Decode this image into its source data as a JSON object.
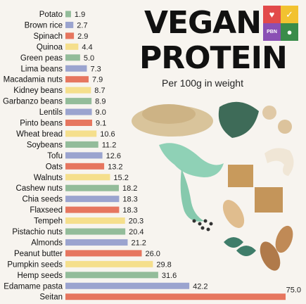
{
  "header": {
    "title_line1": "VEGAN",
    "title_line2": "PROTEIN",
    "subtitle": "Per 100g in weight",
    "logo_text": "PBN"
  },
  "colors": {
    "green": "#93bc9a",
    "blue": "#9ba4cf",
    "red": "#e6765f",
    "yellow": "#f5df8c"
  },
  "chart_data": {
    "type": "bar",
    "orientation": "horizontal",
    "title": "VEGAN PROTEIN",
    "subtitle": "Per 100g in weight",
    "xlim": [
      0,
      75
    ],
    "grid": false,
    "categories": [
      "Potato",
      "Brown rice",
      "Spinach",
      "Quinoa",
      "Green peas",
      "Lima beans",
      "Macadamia nuts",
      "Kidney beans",
      "Garbanzo beans",
      "Lentils",
      "Pinto beans",
      "Wheat bread",
      "Soybeans",
      "Tofu",
      "Oats",
      "Walnuts",
      "Cashew nuts",
      "Chia seeds",
      "Flaxseed",
      "Tempeh",
      "Pistachio nuts",
      "Almonds",
      "Peanut butter",
      "Pumpkin seeds",
      "Hemp seeds",
      "Edamame pasta",
      "Seitan"
    ],
    "value_labels": [
      "1.9",
      "2.7",
      "2.9",
      "4.4",
      "5.0",
      "7.3",
      "7.9",
      "8.7",
      "8.9",
      "9.0",
      "9.1",
      "10.6",
      "11.2",
      "12.6",
      "13.2",
      "15.2",
      "18.2",
      "18.3",
      "18.3",
      "20.3",
      "20.4",
      "21.2",
      "26.0",
      "29.8",
      "31.6",
      "42.2",
      "75.0"
    ],
    "values": [
      1.9,
      2.7,
      2.9,
      4.4,
      5.0,
      7.3,
      7.9,
      8.7,
      8.9,
      9.0,
      9.1,
      10.6,
      11.2,
      12.6,
      13.2,
      15.2,
      18.2,
      18.3,
      18.3,
      20.3,
      20.4,
      21.2,
      26.0,
      29.8,
      31.6,
      42.2,
      75.0
    ],
    "bar_colors": [
      "green",
      "blue",
      "red",
      "yellow",
      "green",
      "blue",
      "red",
      "yellow",
      "green",
      "blue",
      "red",
      "yellow",
      "green",
      "blue",
      "red",
      "yellow",
      "green",
      "blue",
      "red",
      "yellow",
      "green",
      "blue",
      "red",
      "yellow",
      "green",
      "blue",
      "red"
    ]
  }
}
